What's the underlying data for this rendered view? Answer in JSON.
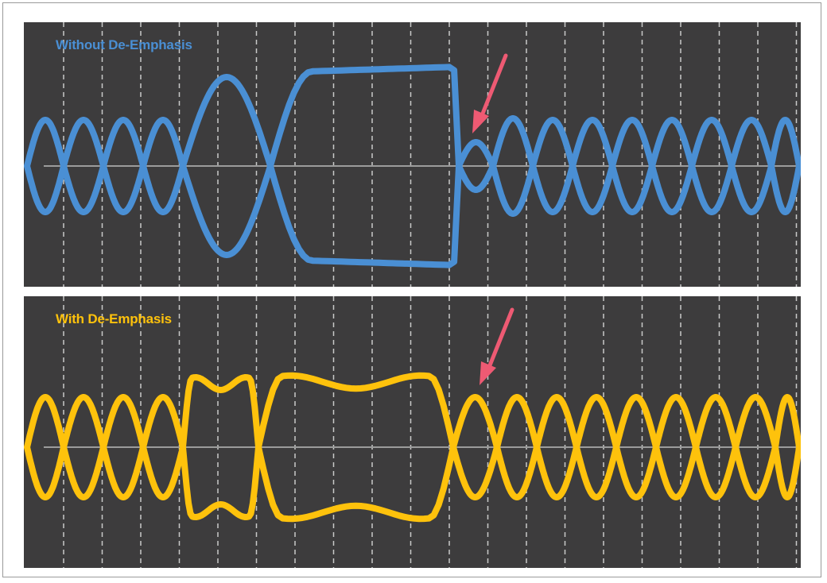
{
  "panels": [
    {
      "title": "Without De-Emphasis",
      "title_color": "#4a8fd4",
      "trace_color": "#4a8fd4"
    },
    {
      "title": "With De-Emphasis",
      "title_color": "#fec20c",
      "trace_color": "#fec20c"
    }
  ],
  "colors": {
    "panel_background": "#3d3c3d",
    "grid_line": "#c9c9c9",
    "baseline": "#9c9c9c",
    "arrow": "#ee5a73"
  }
}
